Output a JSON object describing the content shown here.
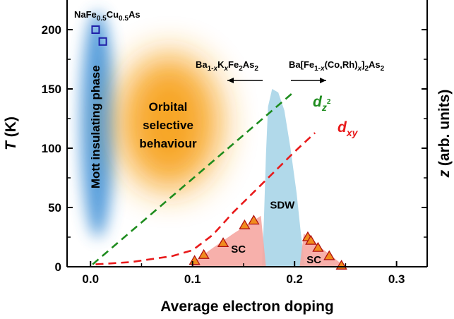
{
  "chart_data": {
    "type": "line",
    "xlabel": "Average electron doping",
    "ylabel_italic": "T",
    "ylabel_unit": " (K)",
    "y2label_italic": "z",
    "y2label_unit": " (arb. units)",
    "xlim": [
      -0.023,
      0.33
    ],
    "ylim": [
      0,
      225
    ],
    "x_ticks": [
      0.0,
      0.1,
      0.2,
      0.3
    ],
    "x_tick_labels": [
      "0.0",
      "0.1",
      "0.2",
      "0.3"
    ],
    "y_ticks": [
      0,
      50,
      100,
      150,
      200
    ],
    "y_tick_labels": [
      "0",
      "50",
      "100",
      "150",
      "200"
    ],
    "grid": false,
    "series": [
      {
        "name": "dz2",
        "style": "dashed",
        "color": "#1e8c1e",
        "x": [
          0.002,
          0.2
        ],
        "y": [
          2,
          148
        ]
      },
      {
        "name": "dxy",
        "style": "dashed",
        "color": "#e8191a",
        "x": [
          0.005,
          0.04,
          0.08,
          0.1,
          0.12,
          0.14,
          0.16,
          0.18,
          0.2,
          0.22
        ],
        "y": [
          2,
          4,
          9,
          14,
          27,
          46,
          63,
          80,
          97,
          113
        ]
      },
      {
        "name": "NaFe0.5Cu0.5As",
        "style": "markers",
        "marker": "open-square",
        "color": "#1f1fa8",
        "x": [
          0.005,
          0.012
        ],
        "y": [
          200,
          190
        ]
      },
      {
        "name": "SC data",
        "style": "markers",
        "marker": "triangle",
        "color": "#f08c1e",
        "x": [
          0.102,
          0.111,
          0.13,
          0.151,
          0.16,
          0.213,
          0.216,
          0.223,
          0.234,
          0.246
        ],
        "y": [
          5,
          10,
          20,
          35,
          39,
          25,
          22,
          16,
          9,
          1
        ]
      }
    ],
    "region_labels": {
      "mott": "Mott insulating phase",
      "orbital": [
        "Orbital",
        "selective",
        "behaviour"
      ],
      "sdw": "SDW",
      "sc_left": "SC",
      "sc_right": "SC"
    },
    "compound_labels": {
      "nafecuas": {
        "a": "NaFe",
        "a_sub": "0.5",
        "b": "Cu",
        "b_sub": "0.5",
        "c": "As"
      },
      "bak": {
        "a": "Ba",
        "a_sub": "1-",
        "a_sub_it": "x",
        "b": "K",
        "b_sub_it": "x",
        "c": "Fe",
        "c_sub": "2",
        "d": "As",
        "d_sub": "2"
      },
      "bafe": {
        "a": "Ba[Fe",
        "a_sub": "1-",
        "a_sub_it": "x",
        "b": "(Co,Rh)",
        "b_sub_it": "x",
        "c": "]",
        "c_sub": "2",
        "d": "As",
        "d_sub": "2"
      }
    },
    "curve_labels": {
      "dz2": {
        "d": "d",
        "sub": "z",
        "sup": "2"
      },
      "dxy": {
        "d": "d",
        "sub": "xy"
      }
    },
    "colors": {
      "mott_glow": "#3d8fd6",
      "orbital_glow": "#f7a21a",
      "sdw_fill": "#a9d5e8",
      "sc_fill": "#f6a7a2",
      "triangle_fill": "#f08c1e",
      "triangle_edge": "#b01010"
    }
  }
}
